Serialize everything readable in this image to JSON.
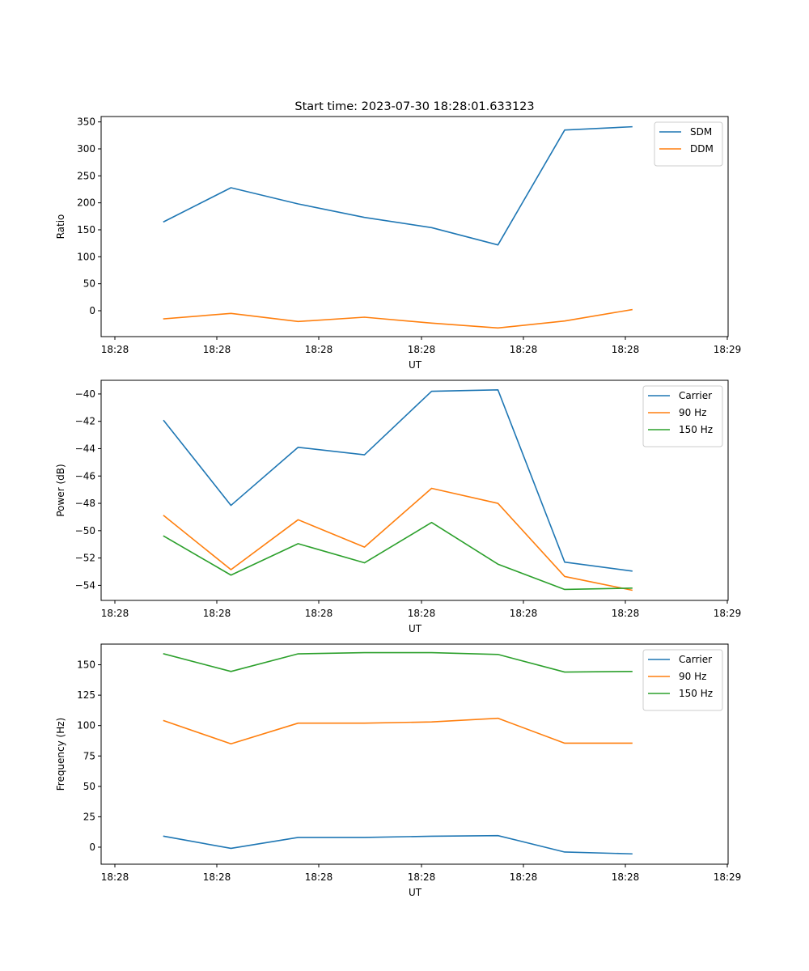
{
  "chart_data": [
    {
      "type": "line",
      "title": "Start time: 2023-07-30 18:28:01.633123",
      "xlabel": "UT",
      "ylabel": "Ratio",
      "x_tick_labels": [
        "18:28",
        "18:28",
        "18:28",
        "18:28",
        "18:28",
        "18:28",
        "18:28"
      ],
      "x_last_tick_label": "18:29",
      "y_ticks": [
        0,
        50,
        100,
        150,
        200,
        250,
        300,
        350
      ],
      "ylim": [
        -48,
        360
      ],
      "legend_position": "top-right",
      "series": [
        {
          "name": "SDM",
          "color": "#1f77b4",
          "values": [
            165,
            228,
            198,
            173,
            154,
            122,
            335,
            341
          ]
        },
        {
          "name": "DDM",
          "color": "#ff7f0e",
          "values": [
            -15,
            -5,
            -20,
            -12,
            -23,
            -32,
            -19,
            2
          ]
        }
      ]
    },
    {
      "type": "line",
      "title": "",
      "xlabel": "UT",
      "ylabel": "Power (dB)",
      "x_tick_labels": [
        "18:28",
        "18:28",
        "18:28",
        "18:28",
        "18:28",
        "18:28",
        "18:28"
      ],
      "x_last_tick_label": "18:29",
      "y_ticks": [
        -54,
        -52,
        -50,
        -48,
        -46,
        -44,
        -42,
        -40
      ],
      "ylim": [
        -55.1,
        -39.0
      ],
      "legend_position": "top-right",
      "series": [
        {
          "name": "Carrier",
          "color": "#1f77b4",
          "values": [
            -41.95,
            -48.15,
            -43.9,
            -44.45,
            -39.8,
            -39.7,
            -52.3,
            -52.95
          ]
        },
        {
          "name": "90 Hz",
          "color": "#ff7f0e",
          "values": [
            -48.9,
            -52.85,
            -49.2,
            -51.2,
            -46.9,
            -48.0,
            -53.35,
            -54.35
          ]
        },
        {
          "name": "150 Hz",
          "color": "#2ca02c",
          "values": [
            -50.4,
            -53.25,
            -50.95,
            -52.35,
            -49.4,
            -52.45,
            -54.3,
            -54.2
          ]
        }
      ]
    },
    {
      "type": "line",
      "title": "",
      "xlabel": "UT",
      "ylabel": "Frequency (Hz)",
      "x_tick_labels": [
        "18:28",
        "18:28",
        "18:28",
        "18:28",
        "18:28",
        "18:28",
        "18:28"
      ],
      "x_last_tick_label": "18:29",
      "y_ticks": [
        0,
        25,
        50,
        75,
        100,
        125,
        150
      ],
      "ylim": [
        -14,
        167
      ],
      "legend_position": "top-right",
      "series": [
        {
          "name": "Carrier",
          "color": "#1f77b4",
          "values": [
            9,
            -1,
            8,
            8,
            9,
            9.5,
            -4,
            -5.5
          ]
        },
        {
          "name": "90 Hz",
          "color": "#ff7f0e",
          "values": [
            104,
            85,
            102,
            102,
            103,
            106,
            85.5,
            85.5
          ]
        },
        {
          "name": "150 Hz",
          "color": "#2ca02c",
          "values": [
            159,
            144.5,
            159,
            160,
            160,
            158.5,
            144,
            144.5
          ]
        }
      ]
    }
  ]
}
